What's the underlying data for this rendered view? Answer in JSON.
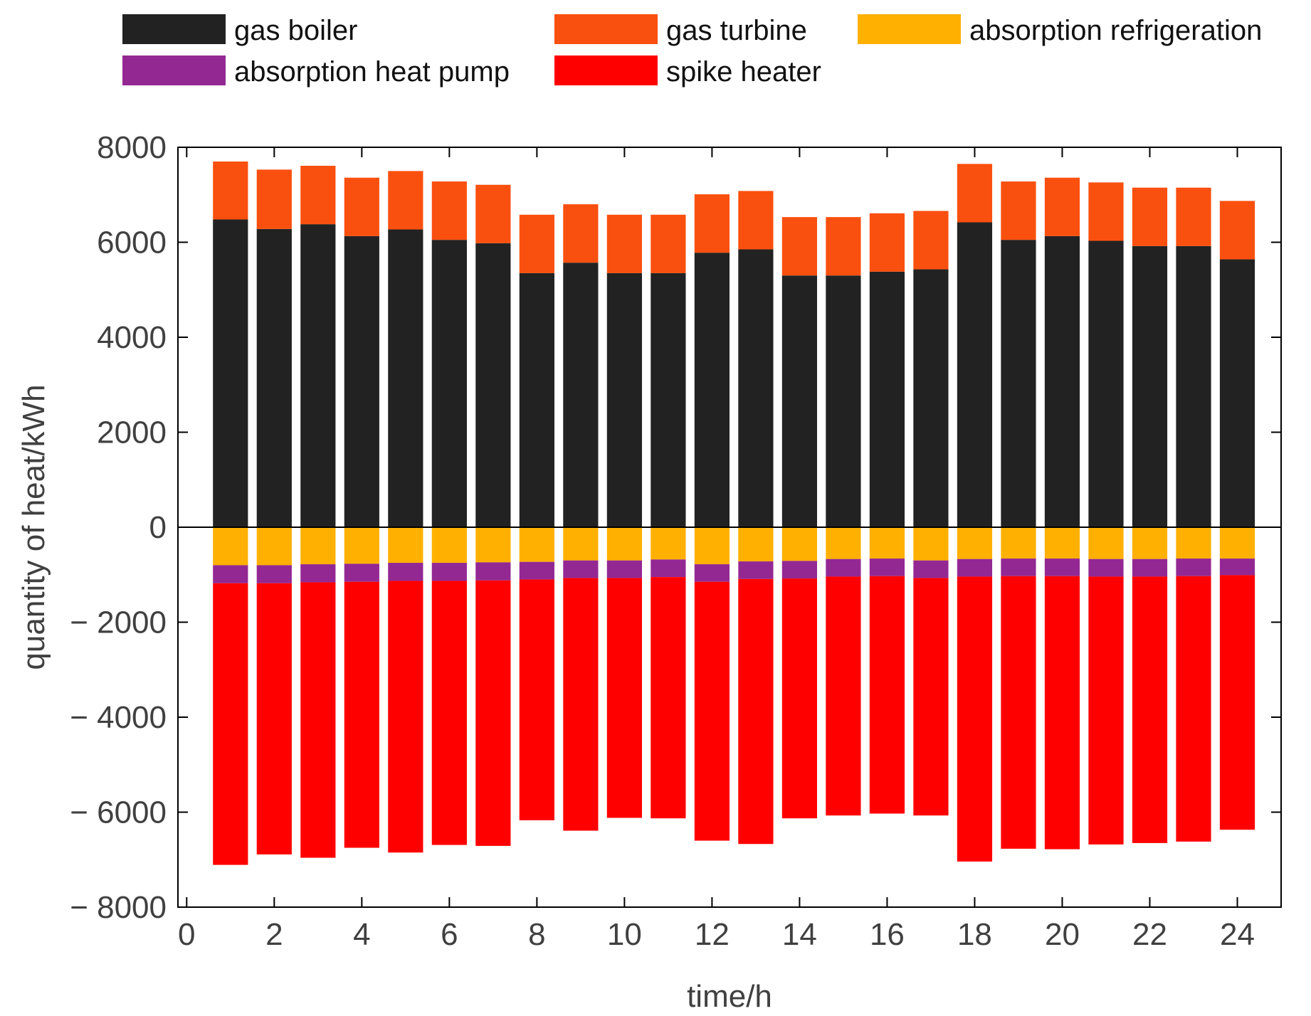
{
  "chart_data": {
    "type": "bar",
    "stacked": true,
    "xlabel": "time/h",
    "ylabel": "quantity of heat/kWh",
    "xlim": [
      -0.2,
      25
    ],
    "ylim": [
      -8000,
      8000
    ],
    "x_ticks": [
      0,
      2,
      4,
      6,
      8,
      10,
      12,
      14,
      16,
      18,
      20,
      22,
      24
    ],
    "y_ticks": [
      8000,
      6000,
      4000,
      2000,
      0,
      -2000,
      -4000,
      -6000,
      -8000
    ],
    "y_tick_labels": [
      "8000",
      "6000",
      "4000",
      "2000",
      "0",
      "− 2000",
      "− 4000",
      "− 6000",
      "− 8000"
    ],
    "x": [
      1,
      2,
      3,
      4,
      5,
      6,
      7,
      8,
      9,
      10,
      11,
      12,
      13,
      14,
      15,
      16,
      17,
      18,
      19,
      20,
      21,
      22,
      23,
      24
    ],
    "legend_position": "top",
    "series": [
      {
        "name": "gas boiler",
        "color": "#222222",
        "values": [
          6480,
          6280,
          6380,
          6130,
          6270,
          6050,
          5980,
          5350,
          5570,
          5350,
          5350,
          5780,
          5850,
          5300,
          5300,
          5380,
          5430,
          6420,
          6050,
          6130,
          6030,
          5920,
          5920,
          5640
        ]
      },
      {
        "name": "gas turbine",
        "color": "#FA500F",
        "values": [
          1220,
          1250,
          1230,
          1230,
          1230,
          1230,
          1230,
          1230,
          1230,
          1230,
          1230,
          1230,
          1230,
          1230,
          1230,
          1230,
          1230,
          1230,
          1230,
          1230,
          1230,
          1230,
          1230,
          1230
        ]
      },
      {
        "name": "absorption refrigeration",
        "color": "#FFB000",
        "values": [
          -800,
          -800,
          -780,
          -770,
          -750,
          -750,
          -740,
          -730,
          -700,
          -700,
          -680,
          -780,
          -720,
          -710,
          -670,
          -660,
          -700,
          -670,
          -660,
          -660,
          -670,
          -670,
          -660,
          -660
        ]
      },
      {
        "name": "absorption heat pump",
        "color": "#932893",
        "values": [
          -380,
          -380,
          -380,
          -380,
          -380,
          -380,
          -380,
          -370,
          -370,
          -370,
          -370,
          -370,
          -370,
          -370,
          -370,
          -370,
          -370,
          -370,
          -370,
          -370,
          -370,
          -370,
          -370,
          -350
        ]
      },
      {
        "name": "spike heater",
        "color": "#FF0000",
        "values": [
          -5930,
          -5710,
          -5800,
          -5600,
          -5720,
          -5560,
          -5590,
          -5070,
          -5320,
          -5050,
          -5080,
          -5450,
          -5580,
          -5050,
          -5030,
          -5000,
          -5000,
          -6000,
          -5740,
          -5750,
          -5640,
          -5610,
          -5590,
          -5360
        ]
      }
    ]
  }
}
